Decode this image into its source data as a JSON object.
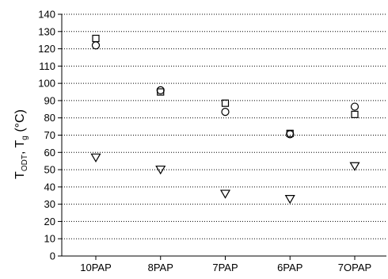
{
  "chart_data": {
    "type": "scatter",
    "title": "",
    "xlabel": "",
    "ylabel": {
      "main": "T",
      "sub1": "ODT",
      "sep": ", T",
      "sub2": "g",
      "unit": " (°C)"
    },
    "categories": [
      "10PAP",
      "8PAP",
      "7PAP",
      "6PAP",
      "7OPAP"
    ],
    "ylim": [
      0,
      140
    ],
    "yticks": [
      0,
      10,
      20,
      30,
      40,
      50,
      60,
      70,
      80,
      90,
      100,
      110,
      120,
      130,
      140
    ],
    "grid": "horizontal-dotted",
    "series": [
      {
        "marker": "square",
        "values": [
          126,
          95,
          88.5,
          71,
          82
        ]
      },
      {
        "marker": "circle",
        "values": [
          122,
          96,
          83.5,
          70.5,
          86.5
        ]
      },
      {
        "marker": "triangle-down",
        "values": [
          57,
          50,
          36,
          33,
          52
        ]
      }
    ]
  }
}
